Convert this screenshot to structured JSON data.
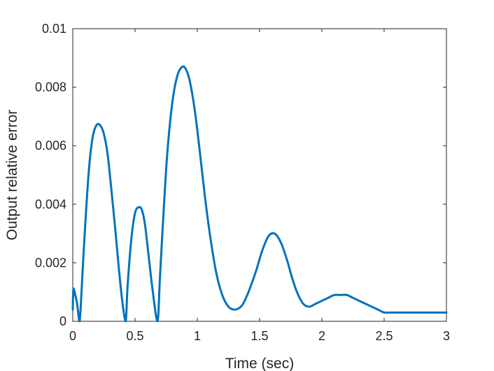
{
  "chart_data": {
    "type": "line",
    "title": "",
    "xlabel": "Time (sec)",
    "ylabel": "Output relative error",
    "xlim": [
      0,
      3
    ],
    "ylim": [
      0,
      0.01
    ],
    "x_ticks": [
      0,
      0.5,
      1,
      1.5,
      2,
      2.5,
      3
    ],
    "x_tick_labels": [
      "0",
      "0.5",
      "1",
      "1.5",
      "2",
      "2.5",
      "3"
    ],
    "y_ticks": [
      0,
      0.002,
      0.004,
      0.006,
      0.008,
      0.01
    ],
    "y_tick_labels": [
      "0",
      "0.002",
      "0.004",
      "0.006",
      "0.008",
      "0.01"
    ],
    "grid": false,
    "box": true,
    "series": [
      {
        "color": "#0072BD",
        "x": [
          0,
          0.005,
          0.02,
          0.035,
          0.055,
          0.08,
          0.1,
          0.13,
          0.16,
          0.19,
          0.22,
          0.25,
          0.28,
          0.31,
          0.34,
          0.37,
          0.4,
          0.425,
          0.44,
          0.47,
          0.5,
          0.53,
          0.555,
          0.58,
          0.61,
          0.64,
          0.68,
          0.7,
          0.73,
          0.76,
          0.8,
          0.84,
          0.88,
          0.91,
          0.94,
          0.98,
          1.02,
          1.06,
          1.1,
          1.15,
          1.2,
          1.25,
          1.3,
          1.35,
          1.38,
          1.42,
          1.47,
          1.52,
          1.57,
          1.62,
          1.67,
          1.72,
          1.76,
          1.8,
          1.85,
          1.9,
          1.95,
          2.0,
          2.05,
          2.1,
          2.15,
          2.2,
          2.25,
          2.3,
          2.35,
          2.4,
          2.45,
          2.5,
          2.55,
          2.6,
          2.65,
          2.7,
          2.75,
          2.8,
          2.85,
          2.9,
          2.95,
          3.0
        ],
        "y": [
          0.0004,
          0.0011,
          0.0009,
          0.0006,
          0.0,
          0.0018,
          0.0033,
          0.0052,
          0.0063,
          0.0067,
          0.0067,
          0.0064,
          0.0057,
          0.0045,
          0.0032,
          0.0018,
          0.0006,
          0.0,
          0.0012,
          0.0028,
          0.0037,
          0.0039,
          0.0038,
          0.0033,
          0.0022,
          0.0011,
          0.0,
          0.0015,
          0.0038,
          0.0058,
          0.0075,
          0.0084,
          0.0087,
          0.0086,
          0.0082,
          0.0072,
          0.0058,
          0.0043,
          0.003,
          0.0017,
          0.0009,
          0.0005,
          0.0004,
          0.0005,
          0.0007,
          0.0011,
          0.0017,
          0.0024,
          0.0029,
          0.003,
          0.0027,
          0.0021,
          0.0015,
          0.001,
          0.0006,
          0.0005,
          0.0006,
          0.0007,
          0.0008,
          0.0009,
          0.0009,
          0.0009,
          0.0008,
          0.0007,
          0.0006,
          0.0005,
          0.0004,
          0.0003,
          0.0003,
          0.0003,
          0.0003,
          0.0003,
          0.0003,
          0.0003,
          0.0003,
          0.0003,
          0.0003,
          0.0003
        ]
      }
    ]
  }
}
